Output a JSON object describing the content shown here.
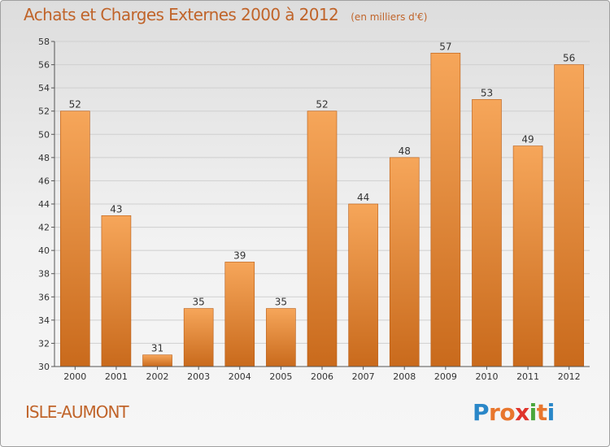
{
  "header": {
    "title": "Achats et Charges Externes 2000 à 2012",
    "unit": "(en milliers d'€)"
  },
  "commune": "ISLE-AUMONT",
  "logo": {
    "text": "Proxiti",
    "letters": [
      {
        "ch": "P",
        "color": "#2a87c8"
      },
      {
        "ch": "r",
        "color": "#e8762d"
      },
      {
        "ch": "o",
        "color": "#e8762d"
      },
      {
        "ch": "x",
        "color": "#e0342c"
      },
      {
        "ch": "i",
        "color": "#4aa63c"
      },
      {
        "ch": "t",
        "color": "#e8762d"
      },
      {
        "ch": "i",
        "color": "#2a87c8"
      }
    ]
  },
  "colors": {
    "bar_light": "#f6a65a",
    "bar_dark": "#c96a1c",
    "bar_edge": "#b85a12",
    "grid": "#cfcfcf",
    "axis": "#555555",
    "text": "#333333"
  },
  "chart_data": {
    "type": "bar",
    "categories": [
      "2000",
      "2001",
      "2002",
      "2003",
      "2004",
      "2005",
      "2006",
      "2007",
      "2008",
      "2009",
      "2010",
      "2011",
      "2012"
    ],
    "values": [
      52,
      43,
      31,
      35,
      39,
      35,
      52,
      44,
      48,
      57,
      53,
      49,
      56
    ],
    "ylim": [
      30,
      58
    ],
    "yticks": [
      30,
      32,
      34,
      36,
      38,
      40,
      42,
      44,
      46,
      48,
      50,
      52,
      54,
      56,
      58
    ],
    "grid": true,
    "data_labels": true
  }
}
